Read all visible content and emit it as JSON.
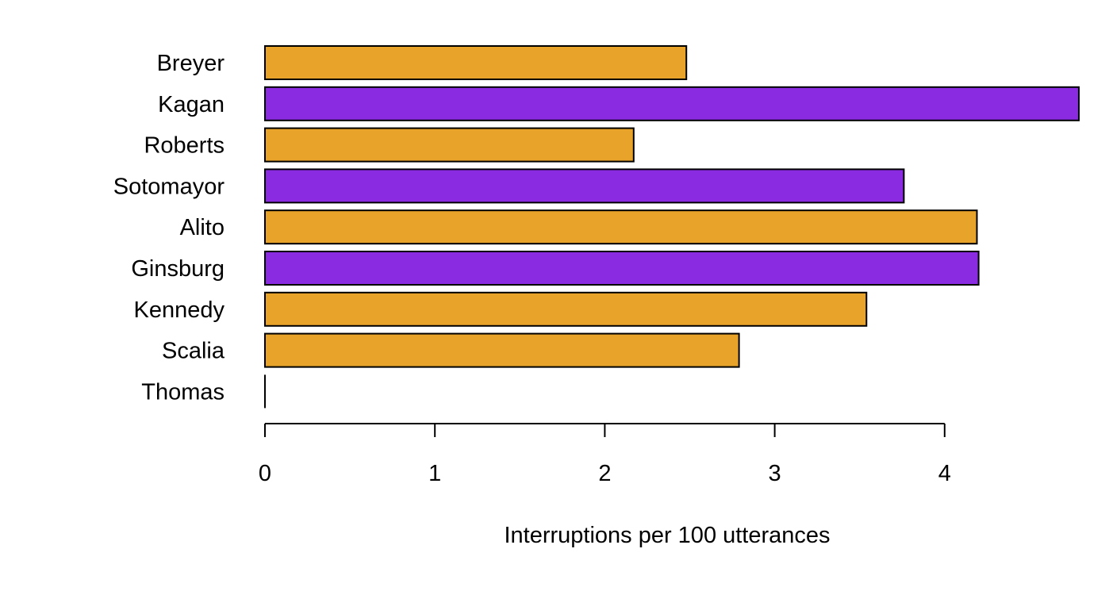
{
  "chart_data": {
    "type": "bar",
    "orientation": "horizontal",
    "title": "",
    "xlabel": "Interruptions per 100 utterances",
    "ylabel": "",
    "categories": [
      "Breyer",
      "Kagan",
      "Roberts",
      "Sotomayor",
      "Alito",
      "Ginsburg",
      "Kennedy",
      "Scalia",
      "Thomas"
    ],
    "values": [
      2.48,
      4.79,
      2.17,
      3.76,
      4.19,
      4.2,
      3.54,
      2.79,
      0
    ],
    "bar_colors": [
      "#E8A32A",
      "#8A2BE2",
      "#E8A32A",
      "#8A2BE2",
      "#E8A32A",
      "#8A2BE2",
      "#E8A32A",
      "#E8A32A",
      "#E8A32A"
    ],
    "xlim": [
      0,
      4.79
    ],
    "xticks": [
      0,
      1,
      2,
      3,
      4
    ],
    "xtick_labels": [
      "0",
      "1",
      "2",
      "3",
      "4"
    ],
    "grid": false,
    "legend": "none"
  }
}
